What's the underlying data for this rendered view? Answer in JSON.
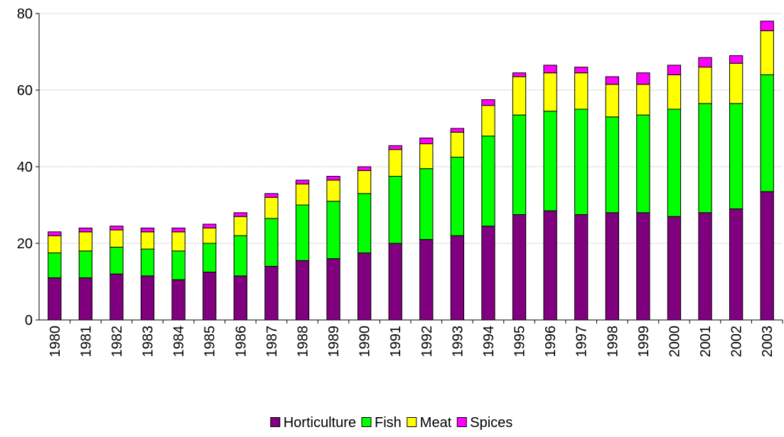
{
  "chart_data": {
    "type": "bar",
    "stacked": true,
    "title": "",
    "xlabel": "",
    "ylabel": "",
    "categories": [
      "1980",
      "1981",
      "1982",
      "1983",
      "1984",
      "1985",
      "1986",
      "1987",
      "1988",
      "1989",
      "1990",
      "1991",
      "1992",
      "1993",
      "1994",
      "1995",
      "1996",
      "1997",
      "1998",
      "1999",
      "2000",
      "2001",
      "2002",
      "2003"
    ],
    "ylim": [
      0,
      80
    ],
    "yticks": [
      0,
      20,
      40,
      60,
      80
    ],
    "grid": true,
    "legend_position": "bottom",
    "series": [
      {
        "name": "Horticulture",
        "color": "#800080",
        "values": [
          11,
          11,
          12,
          11.5,
          10.5,
          12.5,
          11.5,
          14,
          15.5,
          16,
          17.5,
          20,
          21,
          22,
          24.5,
          27.5,
          28.5,
          27.5,
          28,
          28,
          27,
          28,
          29,
          33.5
        ]
      },
      {
        "name": "Fish",
        "color": "#00ff00",
        "values": [
          6.5,
          7,
          7,
          7,
          7.5,
          7.5,
          10.5,
          12.5,
          14.5,
          15,
          15.5,
          17.5,
          18.5,
          20.5,
          23.5,
          26,
          26,
          27.5,
          25,
          25.5,
          28,
          28.5,
          27.5,
          30.5
        ]
      },
      {
        "name": "Meat",
        "color": "#ffff00",
        "values": [
          4.5,
          5,
          4.5,
          4.5,
          5,
          4,
          5,
          5.5,
          5.5,
          5.5,
          6,
          7,
          6.5,
          6.5,
          8,
          10,
          10,
          9.5,
          8.5,
          8,
          9,
          9.5,
          10.5,
          11.5
        ]
      },
      {
        "name": "Spices",
        "color": "#ff00ff",
        "values": [
          1,
          1,
          1,
          1,
          1,
          1,
          1,
          1,
          1,
          1,
          1,
          1,
          1.5,
          1,
          1.5,
          1,
          2,
          1.5,
          2,
          3,
          2.5,
          2.5,
          2,
          2.5
        ]
      }
    ]
  }
}
